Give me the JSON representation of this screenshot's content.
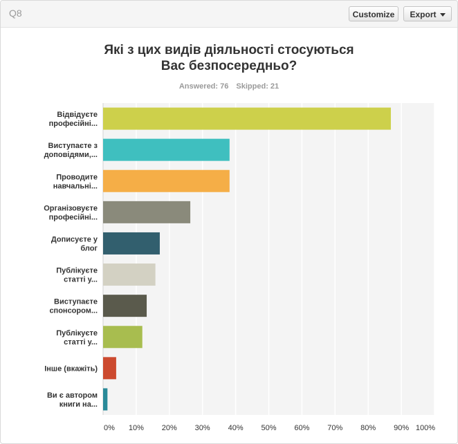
{
  "header": {
    "question_id": "Q8",
    "customize_label": "Customize",
    "export_label": "Export"
  },
  "title_line1": "Які з цих видів діяльності стосуються",
  "title_line2": "Вас безпосередньо?",
  "stats": {
    "answered": "Answered: 76",
    "skipped": "Skipped: 21"
  },
  "chart_data": {
    "type": "bar",
    "orientation": "horizontal",
    "categories": [
      [
        "Відвідуєте",
        "професійні..."
      ],
      [
        "Виступаєте з",
        "доповідями,..."
      ],
      [
        "Проводите",
        "навчальні..."
      ],
      [
        "Організовуєте",
        "професійні..."
      ],
      [
        "Дописуєте у",
        "блог"
      ],
      [
        "Публікуєте",
        "статті у..."
      ],
      [
        "Виступаєте",
        "спонсором..."
      ],
      [
        "Публікуєте",
        "статті у..."
      ],
      [
        "Інше (вкажіть)"
      ],
      [
        "Ви є автором",
        "книги на..."
      ]
    ],
    "values": [
      86.84,
      38.16,
      38.16,
      26.32,
      17.11,
      15.79,
      13.16,
      11.84,
      3.95,
      1.32
    ],
    "colors": [
      "#cdd04b",
      "#3fbfbf",
      "#f5ae47",
      "#8a8a7b",
      "#325f6e",
      "#d3d1c3",
      "#5a5a4c",
      "#a8bd4f",
      "#cc4a2f",
      "#2a8a99"
    ],
    "xlim": [
      0,
      100
    ],
    "xticks": [
      "0%",
      "10%",
      "20%",
      "30%",
      "40%",
      "50%",
      "60%",
      "70%",
      "80%",
      "90%",
      "100%"
    ],
    "grid": true
  }
}
